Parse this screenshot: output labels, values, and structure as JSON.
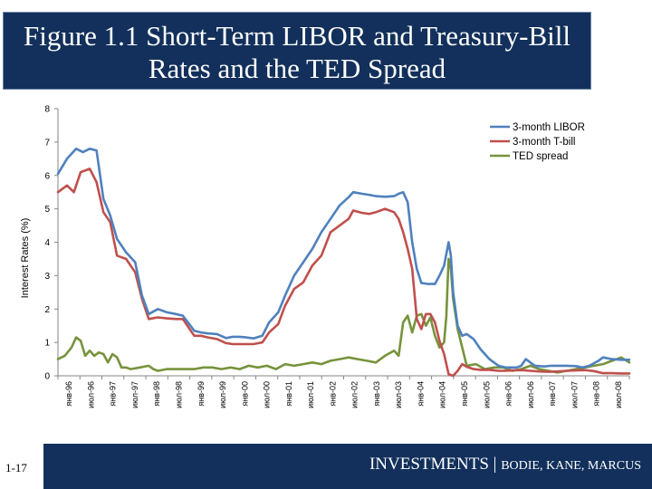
{
  "title": "Figure 1.1 Short-Term LIBOR and Treasury-Bill\nRates and the TED Spread",
  "footer": {
    "brand": "INVESTMENTS",
    "separator": " | ",
    "authors": "BODIE, KANE, MARCUS"
  },
  "slide_number": "1-17",
  "colors": {
    "libor": "#4f81bd",
    "tbill": "#c0504d",
    "ted": "#77933c",
    "title_bg": "#12305b"
  },
  "chart_data": {
    "type": "line",
    "title": "",
    "xlabel": "",
    "ylabel": "Interest Rates (%)",
    "ylim": [
      0,
      8
    ],
    "yticks": [
      0,
      1,
      2,
      3,
      4,
      5,
      6,
      7,
      8
    ],
    "x_start": 1996.0,
    "x_end": 2008.58,
    "tick_labels": [
      "янв-96",
      "июл-96",
      "янв-97",
      "июл-97",
      "янв-98",
      "июл-98",
      "янв-99",
      "июл-99",
      "янв-00",
      "июл-00",
      "янв-01",
      "июл-01",
      "янв-02",
      "июл-02",
      "янв-03",
      "июл-03",
      "янв-04",
      "июл-04",
      "янв-05",
      "июл-05",
      "янв-06",
      "июл-06",
      "янв-07",
      "июл-07",
      "янв-08",
      "июл-08"
    ],
    "legend_position": "top-right",
    "series": [
      {
        "name": "3-month LIBOR",
        "color": "#4f81bd",
        "x": [
          1996.0,
          1996.2,
          1996.4,
          1996.55,
          1996.7,
          1996.85,
          1997.0,
          1997.15,
          1997.3,
          1997.5,
          1997.7,
          1997.85,
          1998.0,
          1998.2,
          1998.4,
          1998.6,
          1998.75,
          1999.0,
          1999.15,
          1999.3,
          1999.5,
          1999.7,
          1999.85,
          2000.0,
          2000.15,
          2000.3,
          2000.5,
          2000.65,
          2000.85,
          2001.0,
          2001.2,
          2001.4,
          2001.6,
          2001.8,
          2002.0,
          2002.2,
          2002.4,
          2002.5,
          2002.7,
          2002.85,
          2003.0,
          2003.2,
          2003.4,
          2003.5,
          2003.6,
          2003.7,
          2003.8,
          2003.9,
          2004.0,
          2004.15,
          2004.3,
          2004.4,
          2004.5,
          2004.6,
          2004.65,
          2004.7,
          2004.8,
          2004.9,
          2005.0,
          2005.15,
          2005.3,
          2005.5,
          2005.7,
          2005.85,
          2006.0,
          2006.1,
          2006.2,
          2006.3,
          2006.5,
          2006.7,
          2006.85,
          2007.0,
          2007.2,
          2007.4,
          2007.55,
          2007.7,
          2007.9,
          2008.0,
          2008.2,
          2008.4,
          2008.58
        ],
        "values": [
          6.05,
          6.5,
          6.8,
          6.7,
          6.8,
          6.75,
          5.3,
          4.8,
          4.1,
          3.7,
          3.4,
          2.4,
          1.85,
          2.0,
          1.9,
          1.85,
          1.8,
          1.35,
          1.3,
          1.27,
          1.25,
          1.13,
          1.17,
          1.17,
          1.15,
          1.12,
          1.2,
          1.6,
          1.9,
          2.4,
          3.0,
          3.4,
          3.8,
          4.3,
          4.7,
          5.1,
          5.35,
          5.5,
          5.45,
          5.42,
          5.38,
          5.36,
          5.38,
          5.45,
          5.5,
          5.2,
          4.0,
          3.2,
          2.78,
          2.75,
          2.75,
          3.0,
          3.3,
          4.0,
          3.6,
          2.5,
          1.5,
          1.2,
          1.25,
          1.1,
          0.8,
          0.5,
          0.3,
          0.25,
          0.25,
          0.25,
          0.3,
          0.5,
          0.3,
          0.28,
          0.3,
          0.3,
          0.3,
          0.29,
          0.25,
          0.3,
          0.45,
          0.55,
          0.5,
          0.48,
          0.48
        ]
      },
      {
        "name": "3-month T-bill",
        "color": "#c0504d",
        "x": [
          1996.0,
          1996.2,
          1996.35,
          1996.5,
          1996.7,
          1996.85,
          1997.0,
          1997.15,
          1997.3,
          1997.5,
          1997.7,
          1997.85,
          1998.0,
          1998.2,
          1998.4,
          1998.6,
          1998.75,
          1999.0,
          1999.15,
          1999.3,
          1999.5,
          1999.7,
          1999.85,
          2000.0,
          2000.15,
          2000.3,
          2000.5,
          2000.65,
          2000.85,
          2001.0,
          2001.2,
          2001.4,
          2001.6,
          2001.8,
          2002.0,
          2002.2,
          2002.4,
          2002.5,
          2002.7,
          2002.85,
          2003.0,
          2003.2,
          2003.4,
          2003.5,
          2003.6,
          2003.7,
          2003.8,
          2003.9,
          2004.0,
          2004.1,
          2004.2,
          2004.3,
          2004.4,
          2004.5,
          2004.6,
          2004.7,
          2004.8,
          2004.9,
          2005.0,
          2005.15,
          2005.3,
          2005.5,
          2005.7,
          2005.85,
          2006.0,
          2006.2,
          2006.4,
          2006.6,
          2006.8,
          2007.0,
          2007.2,
          2007.4,
          2007.6,
          2007.8,
          2008.0,
          2008.2,
          2008.4,
          2008.58
        ],
        "values": [
          5.5,
          5.7,
          5.5,
          6.1,
          6.2,
          5.8,
          4.9,
          4.6,
          3.6,
          3.5,
          3.1,
          2.3,
          1.7,
          1.75,
          1.72,
          1.7,
          1.7,
          1.2,
          1.2,
          1.15,
          1.1,
          0.98,
          0.95,
          0.95,
          0.95,
          0.95,
          1.0,
          1.3,
          1.55,
          2.1,
          2.6,
          2.8,
          3.3,
          3.6,
          4.3,
          4.5,
          4.7,
          4.95,
          4.88,
          4.85,
          4.9,
          5.0,
          4.9,
          4.7,
          4.3,
          3.8,
          3.2,
          1.7,
          1.4,
          1.85,
          1.85,
          1.6,
          1.05,
          0.65,
          0.05,
          0.0,
          0.15,
          0.35,
          0.27,
          0.2,
          0.18,
          0.18,
          0.15,
          0.15,
          0.16,
          0.17,
          0.15,
          0.13,
          0.12,
          0.13,
          0.15,
          0.16,
          0.17,
          0.14,
          0.08,
          0.08,
          0.07,
          0.07
        ]
      },
      {
        "name": "TED spread",
        "color": "#77933c",
        "x": [
          1996.0,
          1996.15,
          1996.3,
          1996.4,
          1996.5,
          1996.6,
          1996.7,
          1996.8,
          1996.9,
          1997.0,
          1997.1,
          1997.2,
          1997.3,
          1997.4,
          1997.5,
          1997.6,
          1997.8,
          1998.0,
          1998.1,
          1998.2,
          1998.4,
          1998.6,
          1998.8,
          1999.0,
          1999.2,
          1999.4,
          1999.6,
          1999.8,
          2000.0,
          2000.2,
          2000.4,
          2000.6,
          2000.8,
          2001.0,
          2001.2,
          2001.4,
          2001.6,
          2001.8,
          2002.0,
          2002.2,
          2002.4,
          2002.6,
          2002.8,
          2003.0,
          2003.2,
          2003.4,
          2003.5,
          2003.6,
          2003.7,
          2003.8,
          2003.9,
          2004.0,
          2004.1,
          2004.2,
          2004.3,
          2004.4,
          2004.5,
          2004.55,
          2004.6,
          2004.65,
          2004.7,
          2004.8,
          2004.9,
          2005.0,
          2005.2,
          2005.4,
          2005.6,
          2005.8,
          2006.0,
          2006.2,
          2006.4,
          2006.6,
          2006.8,
          2007.0,
          2007.2,
          2007.4,
          2007.6,
          2007.8,
          2008.0,
          2008.2,
          2008.4,
          2008.58
        ],
        "values": [
          0.5,
          0.6,
          0.85,
          1.15,
          1.05,
          0.6,
          0.75,
          0.6,
          0.7,
          0.65,
          0.4,
          0.65,
          0.55,
          0.25,
          0.25,
          0.2,
          0.25,
          0.3,
          0.2,
          0.15,
          0.2,
          0.2,
          0.2,
          0.2,
          0.25,
          0.25,
          0.2,
          0.25,
          0.2,
          0.3,
          0.25,
          0.3,
          0.2,
          0.35,
          0.3,
          0.35,
          0.4,
          0.35,
          0.45,
          0.5,
          0.55,
          0.5,
          0.45,
          0.4,
          0.6,
          0.75,
          0.6,
          1.6,
          1.8,
          1.3,
          1.8,
          1.85,
          1.5,
          1.75,
          1.2,
          0.85,
          1.0,
          1.8,
          3.5,
          3.2,
          2.3,
          1.4,
          0.85,
          0.3,
          0.35,
          0.2,
          0.25,
          0.25,
          0.15,
          0.2,
          0.3,
          0.2,
          0.15,
          0.1,
          0.15,
          0.2,
          0.25,
          0.3,
          0.35,
          0.45,
          0.55,
          0.4
        ]
      }
    ]
  }
}
